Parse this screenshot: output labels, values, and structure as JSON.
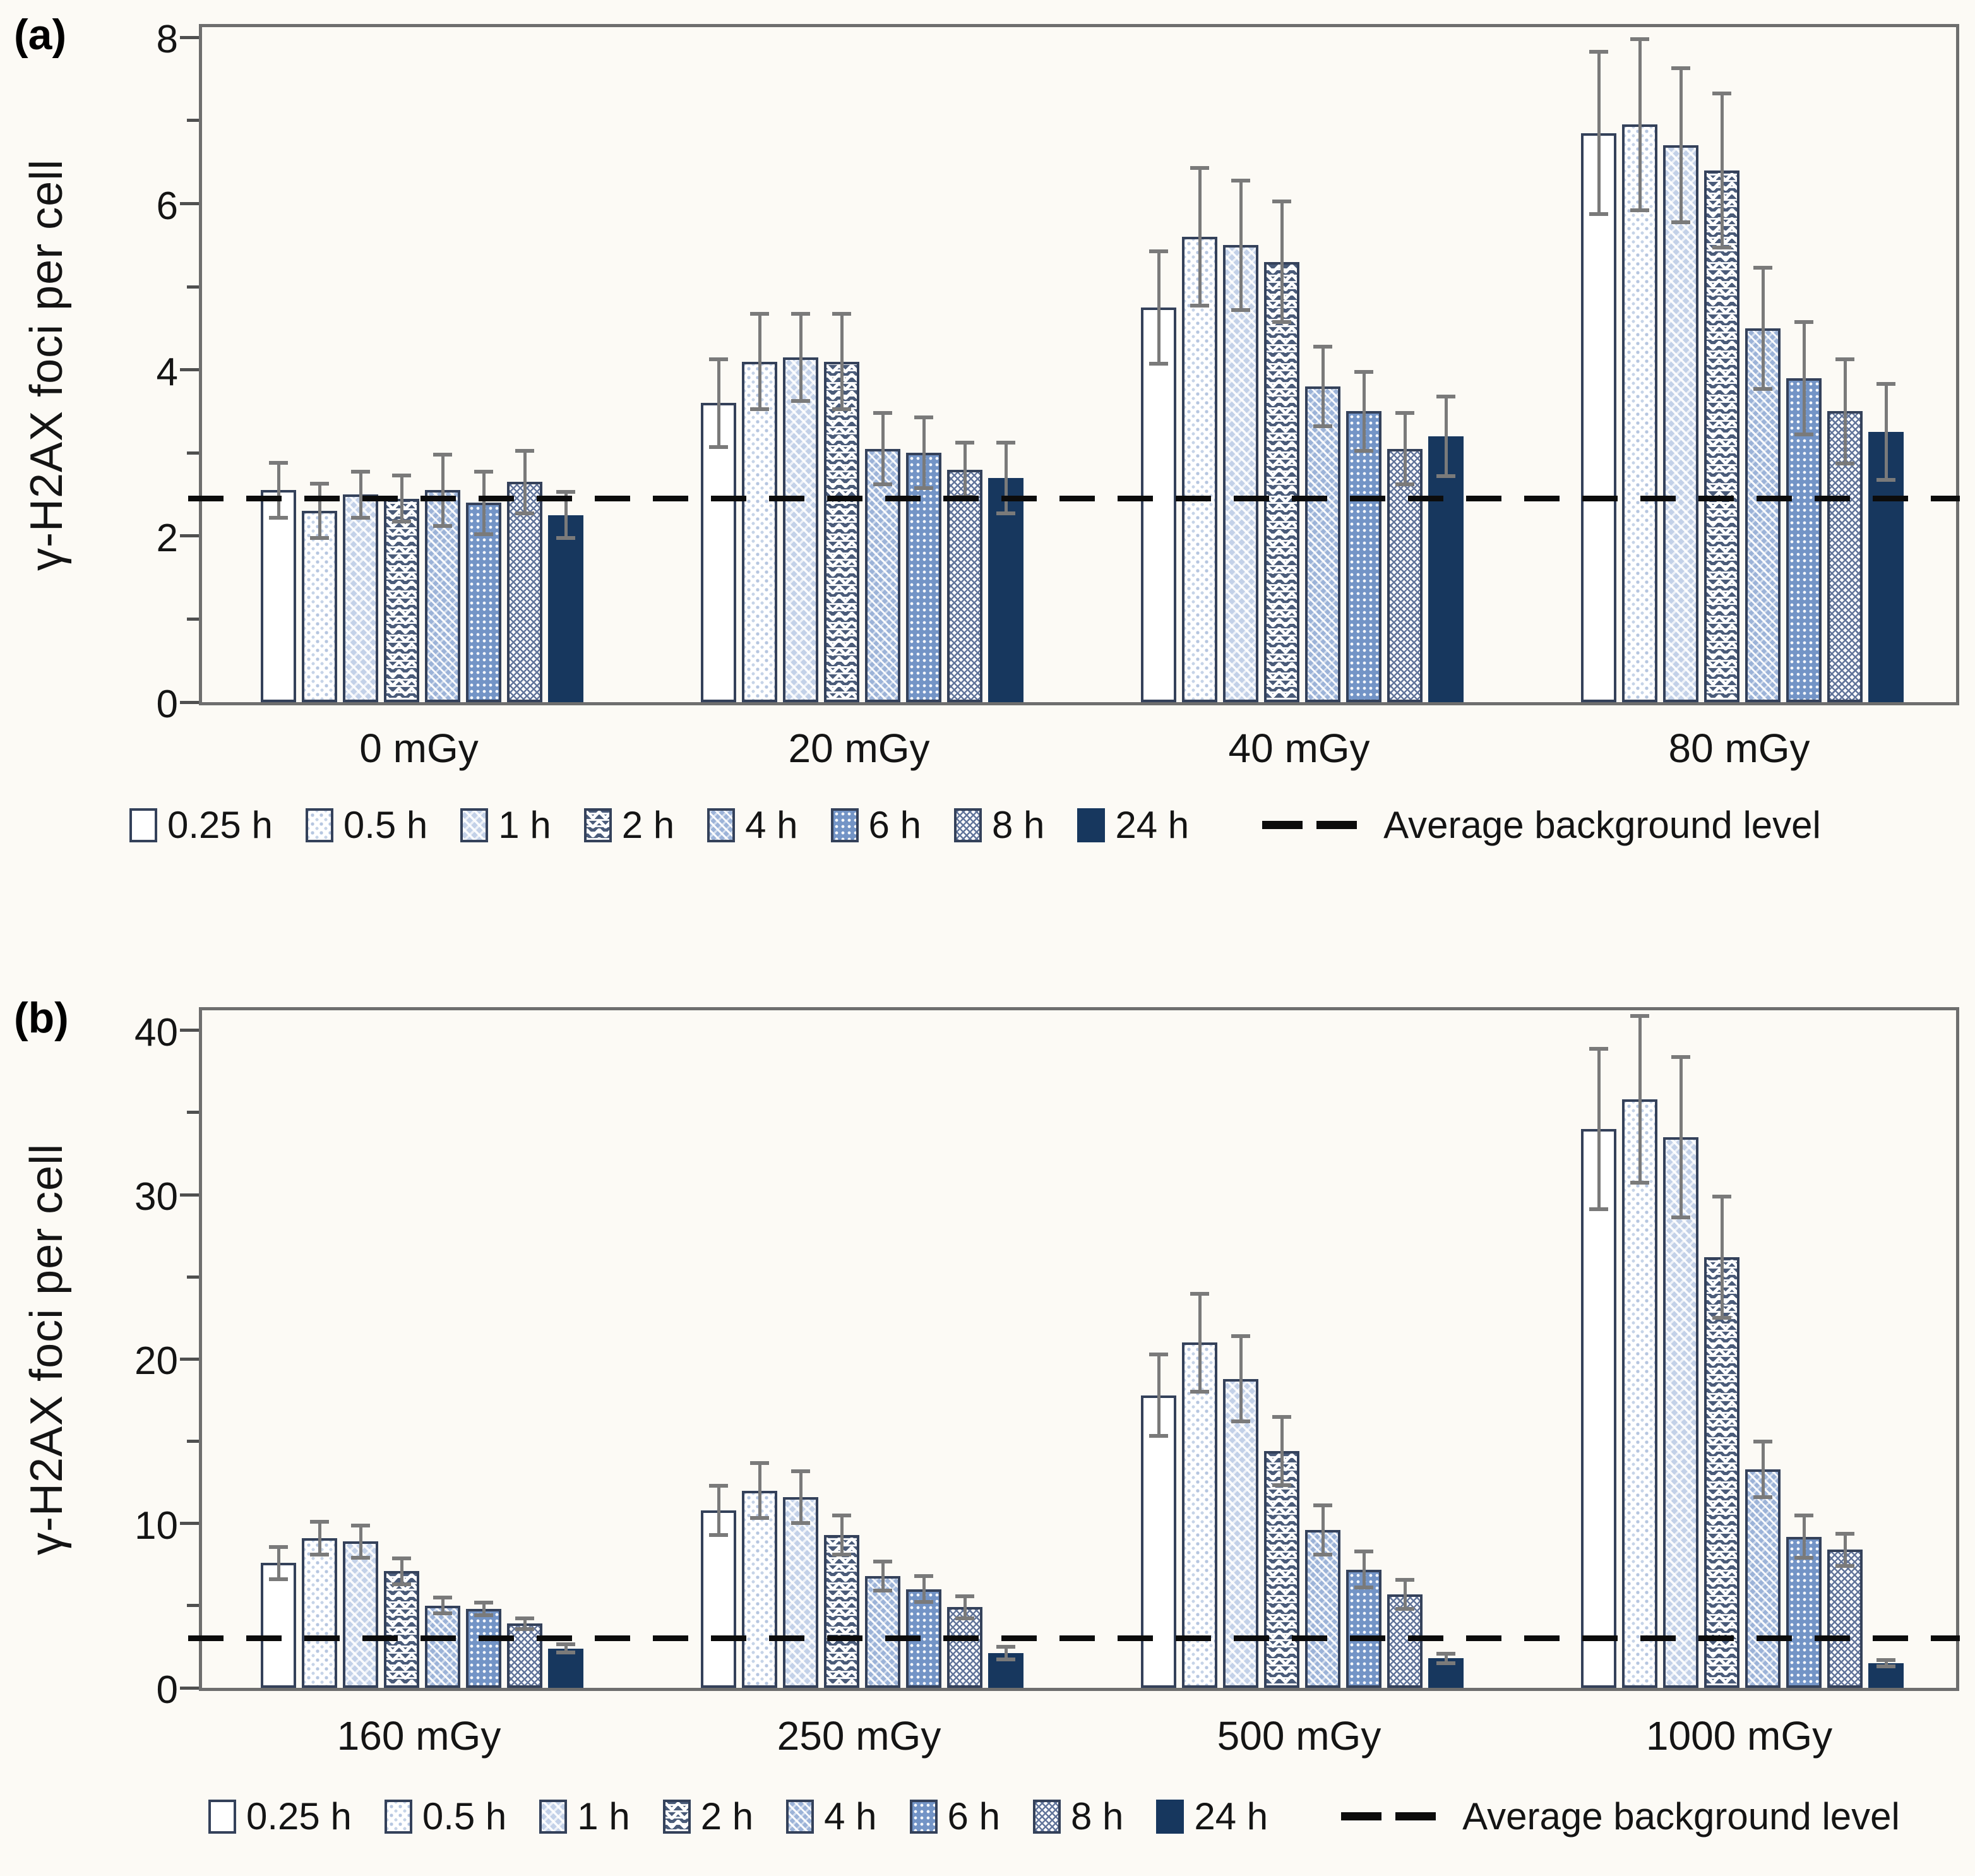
{
  "figure_background": "#fcfaf5",
  "colors": {
    "solid_navy": "#17375e",
    "bar_outline": "#34415a",
    "light_blue": "#c3d1e8",
    "medium_blue": "#9cb3d8",
    "deep_blue": "#7394c6",
    "error_bar": "#7a7a7a",
    "axis_frame": "#6e6e6e",
    "dashed_line": "#0c0c0c"
  },
  "patterns": [
    "plain-white",
    "light-dots",
    "light-weave",
    "zigzag-rows",
    "medium-weave",
    "blue-dots",
    "fine-lattice",
    "solid-navy"
  ],
  "chart_data": [
    {
      "type": "bar",
      "panel_label": "(a)",
      "ylabel": "γ-H2AX foci per cell",
      "ylim": [
        0,
        8
      ],
      "ytick_major": 2,
      "ytick_minor": 1,
      "yticks": [
        "0",
        "2",
        "4",
        "6",
        "8"
      ],
      "grid": "off",
      "legend_position": "bottom",
      "background_level": 2.45,
      "background_label": "Average background level",
      "categories": [
        "0 mGy",
        "20 mGy",
        "40 mGy",
        "80 mGy"
      ],
      "series": [
        {
          "name": "0.25 h",
          "values": [
            2.55,
            3.6,
            4.75,
            6.85
          ],
          "errors": [
            0.35,
            0.55,
            0.7,
            1.0
          ]
        },
        {
          "name": "0.5 h",
          "values": [
            2.3,
            4.1,
            5.6,
            6.95
          ],
          "errors": [
            0.35,
            0.6,
            0.85,
            1.05
          ]
        },
        {
          "name": "1 h",
          "values": [
            2.5,
            4.15,
            5.5,
            6.7
          ],
          "errors": [
            0.3,
            0.55,
            0.8,
            0.95
          ]
        },
        {
          "name": "2 h",
          "values": [
            2.45,
            4.1,
            5.3,
            6.4
          ],
          "errors": [
            0.3,
            0.6,
            0.75,
            0.95
          ]
        },
        {
          "name": "4 h",
          "values": [
            2.55,
            3.05,
            3.8,
            4.5
          ],
          "errors": [
            0.45,
            0.45,
            0.5,
            0.75
          ]
        },
        {
          "name": "6 h",
          "values": [
            2.4,
            3.0,
            3.5,
            3.9
          ],
          "errors": [
            0.4,
            0.45,
            0.5,
            0.7
          ]
        },
        {
          "name": "8 h",
          "values": [
            2.65,
            2.8,
            3.05,
            3.5
          ],
          "errors": [
            0.4,
            0.35,
            0.45,
            0.65
          ]
        },
        {
          "name": "24 h",
          "values": [
            2.25,
            2.7,
            3.2,
            3.25
          ],
          "errors": [
            0.3,
            0.45,
            0.5,
            0.6
          ]
        }
      ]
    },
    {
      "type": "bar",
      "panel_label": "(b)",
      "ylabel": "γ-H2AX foci per cell",
      "ylim": [
        0,
        40
      ],
      "ytick_major": 10,
      "ytick_minor": 5,
      "yticks": [
        "0",
        "10",
        "20",
        "30",
        "40"
      ],
      "grid": "off",
      "legend_position": "bottom",
      "background_level": 3,
      "background_label": "Average background level",
      "categories": [
        "160 mGy",
        "250 mGy",
        "500 mGy",
        "1000 mGy"
      ],
      "series": [
        {
          "name": "0.25 h",
          "values": [
            7.6,
            10.8,
            17.8,
            34.0
          ],
          "errors": [
            1.1,
            1.6,
            2.6,
            5.0
          ]
        },
        {
          "name": "0.5 h",
          "values": [
            9.1,
            12.0,
            21.0,
            35.8
          ],
          "errors": [
            1.1,
            1.8,
            3.1,
            5.2
          ]
        },
        {
          "name": "1 h",
          "values": [
            8.9,
            11.6,
            18.8,
            33.5
          ],
          "errors": [
            1.1,
            1.7,
            2.7,
            5.0
          ]
        },
        {
          "name": "2 h",
          "values": [
            7.1,
            9.3,
            14.4,
            26.2
          ],
          "errors": [
            0.9,
            1.3,
            2.2,
            3.8
          ]
        },
        {
          "name": "4 h",
          "values": [
            5.0,
            6.8,
            9.6,
            13.3
          ],
          "errors": [
            0.6,
            1.0,
            1.6,
            1.8
          ]
        },
        {
          "name": "6 h",
          "values": [
            4.8,
            6.0,
            7.2,
            9.2
          ],
          "errors": [
            0.5,
            0.9,
            1.2,
            1.4
          ]
        },
        {
          "name": "8 h",
          "values": [
            3.9,
            4.9,
            5.7,
            8.4
          ],
          "errors": [
            0.45,
            0.8,
            1.0,
            1.1
          ]
        },
        {
          "name": "24 h",
          "values": [
            2.4,
            2.1,
            1.8,
            1.5
          ],
          "errors": [
            0.35,
            0.5,
            0.4,
            0.3
          ]
        }
      ]
    }
  ]
}
